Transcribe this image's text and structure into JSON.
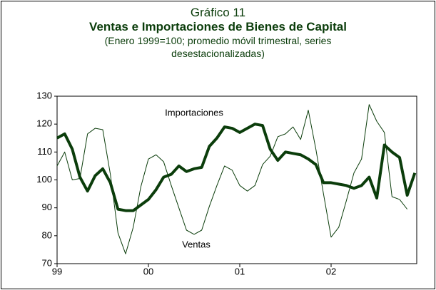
{
  "chart_data": {
    "type": "line",
    "title": "Gráfico 11",
    "subtitle": "Ventas e Importaciones de Bienes de Capital",
    "note": "(Enero 1999=100; promedio móvil trimestral, series desestacionalizadas)",
    "categories": [
      "99",
      null,
      null,
      null,
      null,
      null,
      null,
      null,
      null,
      null,
      null,
      null,
      "00",
      null,
      null,
      null,
      null,
      null,
      null,
      null,
      null,
      null,
      null,
      null,
      "01",
      null,
      null,
      null,
      null,
      null,
      null,
      null,
      null,
      null,
      null,
      null,
      "02",
      null,
      null,
      null,
      null,
      null,
      null,
      null,
      null,
      null,
      null,
      null
    ],
    "series": [
      {
        "name": "Importaciones",
        "color": "#0b3d0b",
        "width": 4,
        "values": [
          115,
          116.5,
          111,
          101,
          96,
          101.5,
          104,
          99,
          89.5,
          89,
          89,
          91,
          93,
          96.5,
          101,
          102,
          105,
          103,
          104,
          104.5,
          112,
          115,
          119,
          118.5,
          117,
          118.5,
          120,
          119.5,
          111,
          107,
          110,
          109.5,
          109,
          107.5,
          105.5,
          99,
          99,
          98.5,
          98,
          97,
          98,
          101,
          93.5,
          112.5,
          110,
          108,
          94.5,
          102.5
        ]
      },
      {
        "name": "Ventas",
        "color": "#0b3d0b",
        "width": 1,
        "values": [
          105,
          110,
          100,
          100.5,
          116.5,
          118.5,
          118,
          102,
          81,
          73.5,
          83,
          97.5,
          107.5,
          109,
          106.5,
          98,
          90,
          82,
          80.5,
          82,
          90.5,
          98,
          105,
          103.5,
          98,
          96,
          98,
          105.5,
          108.5,
          115.5,
          116.5,
          119,
          114.5,
          125,
          111,
          95,
          79.5,
          83,
          92.5,
          102.5,
          107.5,
          127,
          121,
          117,
          94,
          93,
          89.5,
          null
        ]
      }
    ],
    "annotations": [
      "Importaciones",
      "Ventas"
    ],
    "ylim": [
      70,
      130
    ],
    "yticks": [
      70,
      80,
      90,
      100,
      110,
      120,
      130
    ],
    "grid": false
  }
}
